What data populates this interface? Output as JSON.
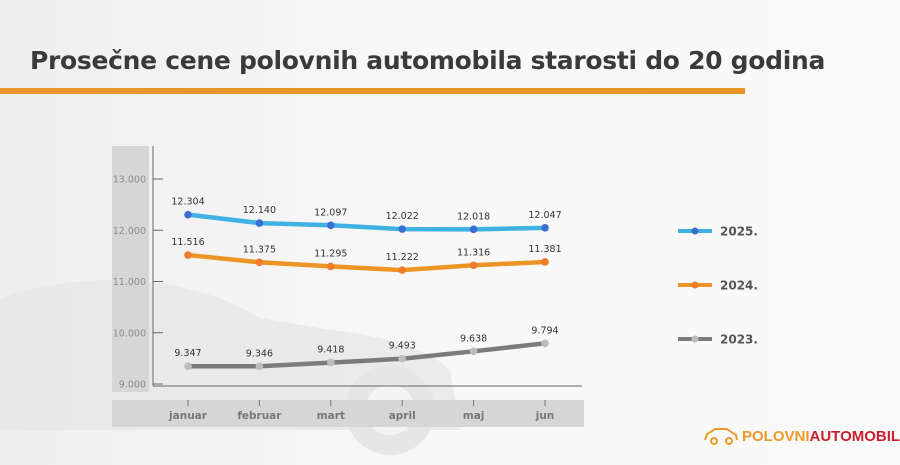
{
  "title": "Prosečne cene polovnih automobila starosti do 20 godina",
  "logo": {
    "part1": "POLOVNI",
    "part2": "AUTOMOBILI"
  },
  "chart_data": {
    "type": "line",
    "title": "Prosečne cene polovnih automobila starosti do 20 godina",
    "categories": [
      "januar",
      "februar",
      "mart",
      "april",
      "maj",
      "jun"
    ],
    "ylim": [
      9000,
      13000
    ],
    "yticks": [
      9000,
      10000,
      11000,
      12000,
      13000
    ],
    "ytick_labels": [
      "9.000",
      "10.000",
      "11.000",
      "12.000",
      "13.000"
    ],
    "grid": false,
    "legend": "right",
    "series": [
      {
        "name": "2025.",
        "color": "#3fb1e3",
        "marker_color": "#3a6fd0",
        "values": [
          12304,
          12140,
          12097,
          12022,
          12018,
          12047
        ],
        "labels": [
          "12.304",
          "12.140",
          "12.097",
          "12.022",
          "12.018",
          "12.047"
        ]
      },
      {
        "name": "2024.",
        "color": "#ec9424",
        "marker_color": "#ee7a2a",
        "values": [
          11516,
          11375,
          11295,
          11222,
          11316,
          11381
        ],
        "labels": [
          "11.516",
          "11.375",
          "11.295",
          "11.222",
          "11.316",
          "11.381"
        ]
      },
      {
        "name": "2023.",
        "color": "#7b7b7b",
        "marker_color": "#bdbdbd",
        "values": [
          9347,
          9346,
          9418,
          9493,
          9638,
          9794
        ],
        "labels": [
          "9.347",
          "9.346",
          "9.418",
          "9.493",
          "9.638",
          "9.794"
        ]
      }
    ]
  }
}
